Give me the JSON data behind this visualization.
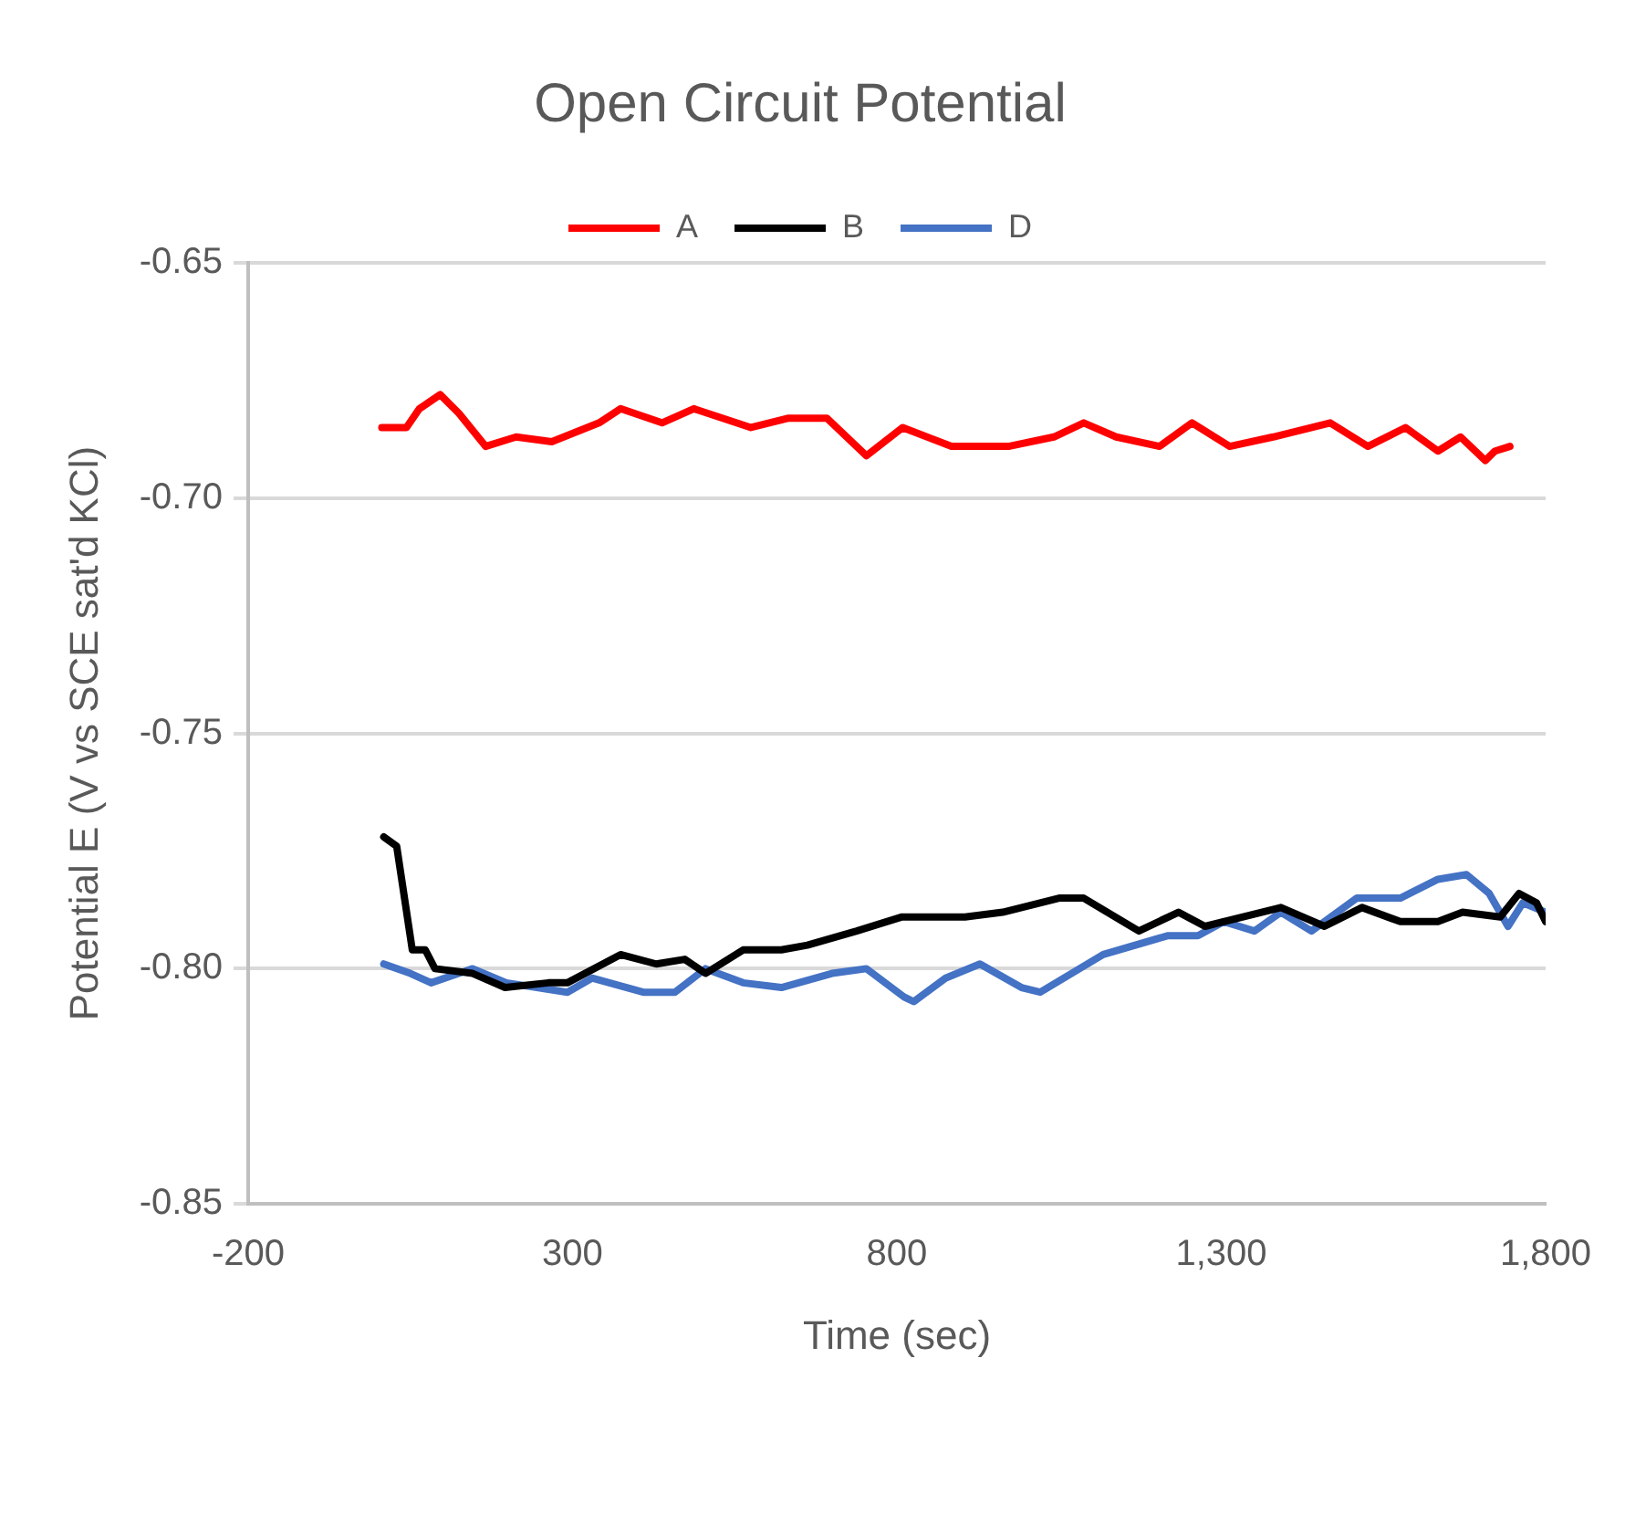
{
  "chart_data": {
    "type": "line",
    "title": "Open Circuit Potential",
    "xlabel": "Time (sec)",
    "ylabel": "Potential E (V vs SCE sat'd KCl)",
    "xlim": [
      -200,
      1800
    ],
    "xticks": [
      -200,
      300,
      800,
      {
        "value": 1300,
        "label": "1,300"
      },
      {
        "value": 1800,
        "label": "1,800"
      }
    ],
    "ylim": [
      -0.85,
      -0.65
    ],
    "yticks": [
      {
        "value": -0.85,
        "label": "-0.85"
      },
      {
        "value": -0.8,
        "label": "-0.80"
      },
      {
        "value": -0.75,
        "label": "-0.75"
      },
      {
        "value": -0.7,
        "label": "-0.70"
      },
      {
        "value": -0.65,
        "label": "-0.65"
      }
    ],
    "grid": "y",
    "legend": "top",
    "marker": "none",
    "line_style": "solid",
    "series": [
      {
        "name": "A",
        "color": "#ff0000",
        "x": [
          6,
          44,
          64,
          96,
          125,
          166,
          213,
          268,
          341,
          374,
          438,
          487,
          575,
          633,
          692,
          753,
          809,
          884,
          972,
          1042,
          1088,
          1138,
          1205,
          1255,
          1313,
          1380,
          1468,
          1526,
          1584,
          1634,
          1669,
          1707,
          1722,
          1745
        ],
        "values": [
          -0.685,
          -0.685,
          -0.681,
          -0.678,
          -0.682,
          -0.689,
          -0.687,
          -0.688,
          -0.684,
          -0.681,
          -0.684,
          -0.681,
          -0.685,
          -0.683,
          -0.683,
          -0.691,
          -0.685,
          -0.689,
          -0.689,
          -0.687,
          -0.684,
          -0.687,
          -0.689,
          -0.684,
          -0.689,
          -0.687,
          -0.684,
          -0.689,
          -0.685,
          -0.69,
          -0.687,
          -0.692,
          -0.69,
          -0.689
        ]
      },
      {
        "name": "B",
        "color": "#000000",
        "x": [
          9,
          29,
          53,
          73,
          88,
          146,
          196,
          263,
          292,
          374,
          429,
          473,
          505,
          563,
          622,
          662,
          738,
          808,
          905,
          963,
          1050,
          1088,
          1173,
          1234,
          1275,
          1392,
          1459,
          1517,
          1576,
          1634,
          1672,
          1730,
          1759,
          1786,
          1800
        ],
        "values": [
          -0.772,
          -0.774,
          -0.796,
          -0.796,
          -0.8,
          -0.801,
          -0.804,
          -0.803,
          -0.803,
          -0.797,
          -0.799,
          -0.798,
          -0.801,
          -0.796,
          -0.796,
          -0.795,
          -0.792,
          -0.789,
          -0.789,
          -0.788,
          -0.785,
          -0.785,
          -0.792,
          -0.788,
          -0.791,
          -0.787,
          -0.791,
          -0.787,
          -0.79,
          -0.79,
          -0.788,
          -0.789,
          -0.784,
          -0.786,
          -0.79
        ]
      },
      {
        "name": "D",
        "color": "#4472c4",
        "x": [
          9,
          50,
          82,
          146,
          198,
          292,
          330,
          409,
          458,
          505,
          563,
          622,
          700,
          753,
          811,
          826,
          875,
          928,
          992,
          1021,
          1118,
          1217,
          1264,
          1304,
          1351,
          1392,
          1439,
          1509,
          1576,
          1634,
          1678,
          1713,
          1742,
          1765,
          1800
        ],
        "values": [
          -0.799,
          -0.801,
          -0.803,
          -0.8,
          -0.803,
          -0.805,
          -0.802,
          -0.805,
          -0.805,
          -0.8,
          -0.803,
          -0.804,
          -0.801,
          -0.8,
          -0.806,
          -0.807,
          -0.802,
          -0.799,
          -0.804,
          -0.805,
          -0.797,
          -0.793,
          -0.793,
          -0.79,
          -0.792,
          -0.788,
          -0.792,
          -0.785,
          -0.785,
          -0.781,
          -0.78,
          -0.784,
          -0.791,
          -0.786,
          -0.788
        ]
      }
    ]
  }
}
